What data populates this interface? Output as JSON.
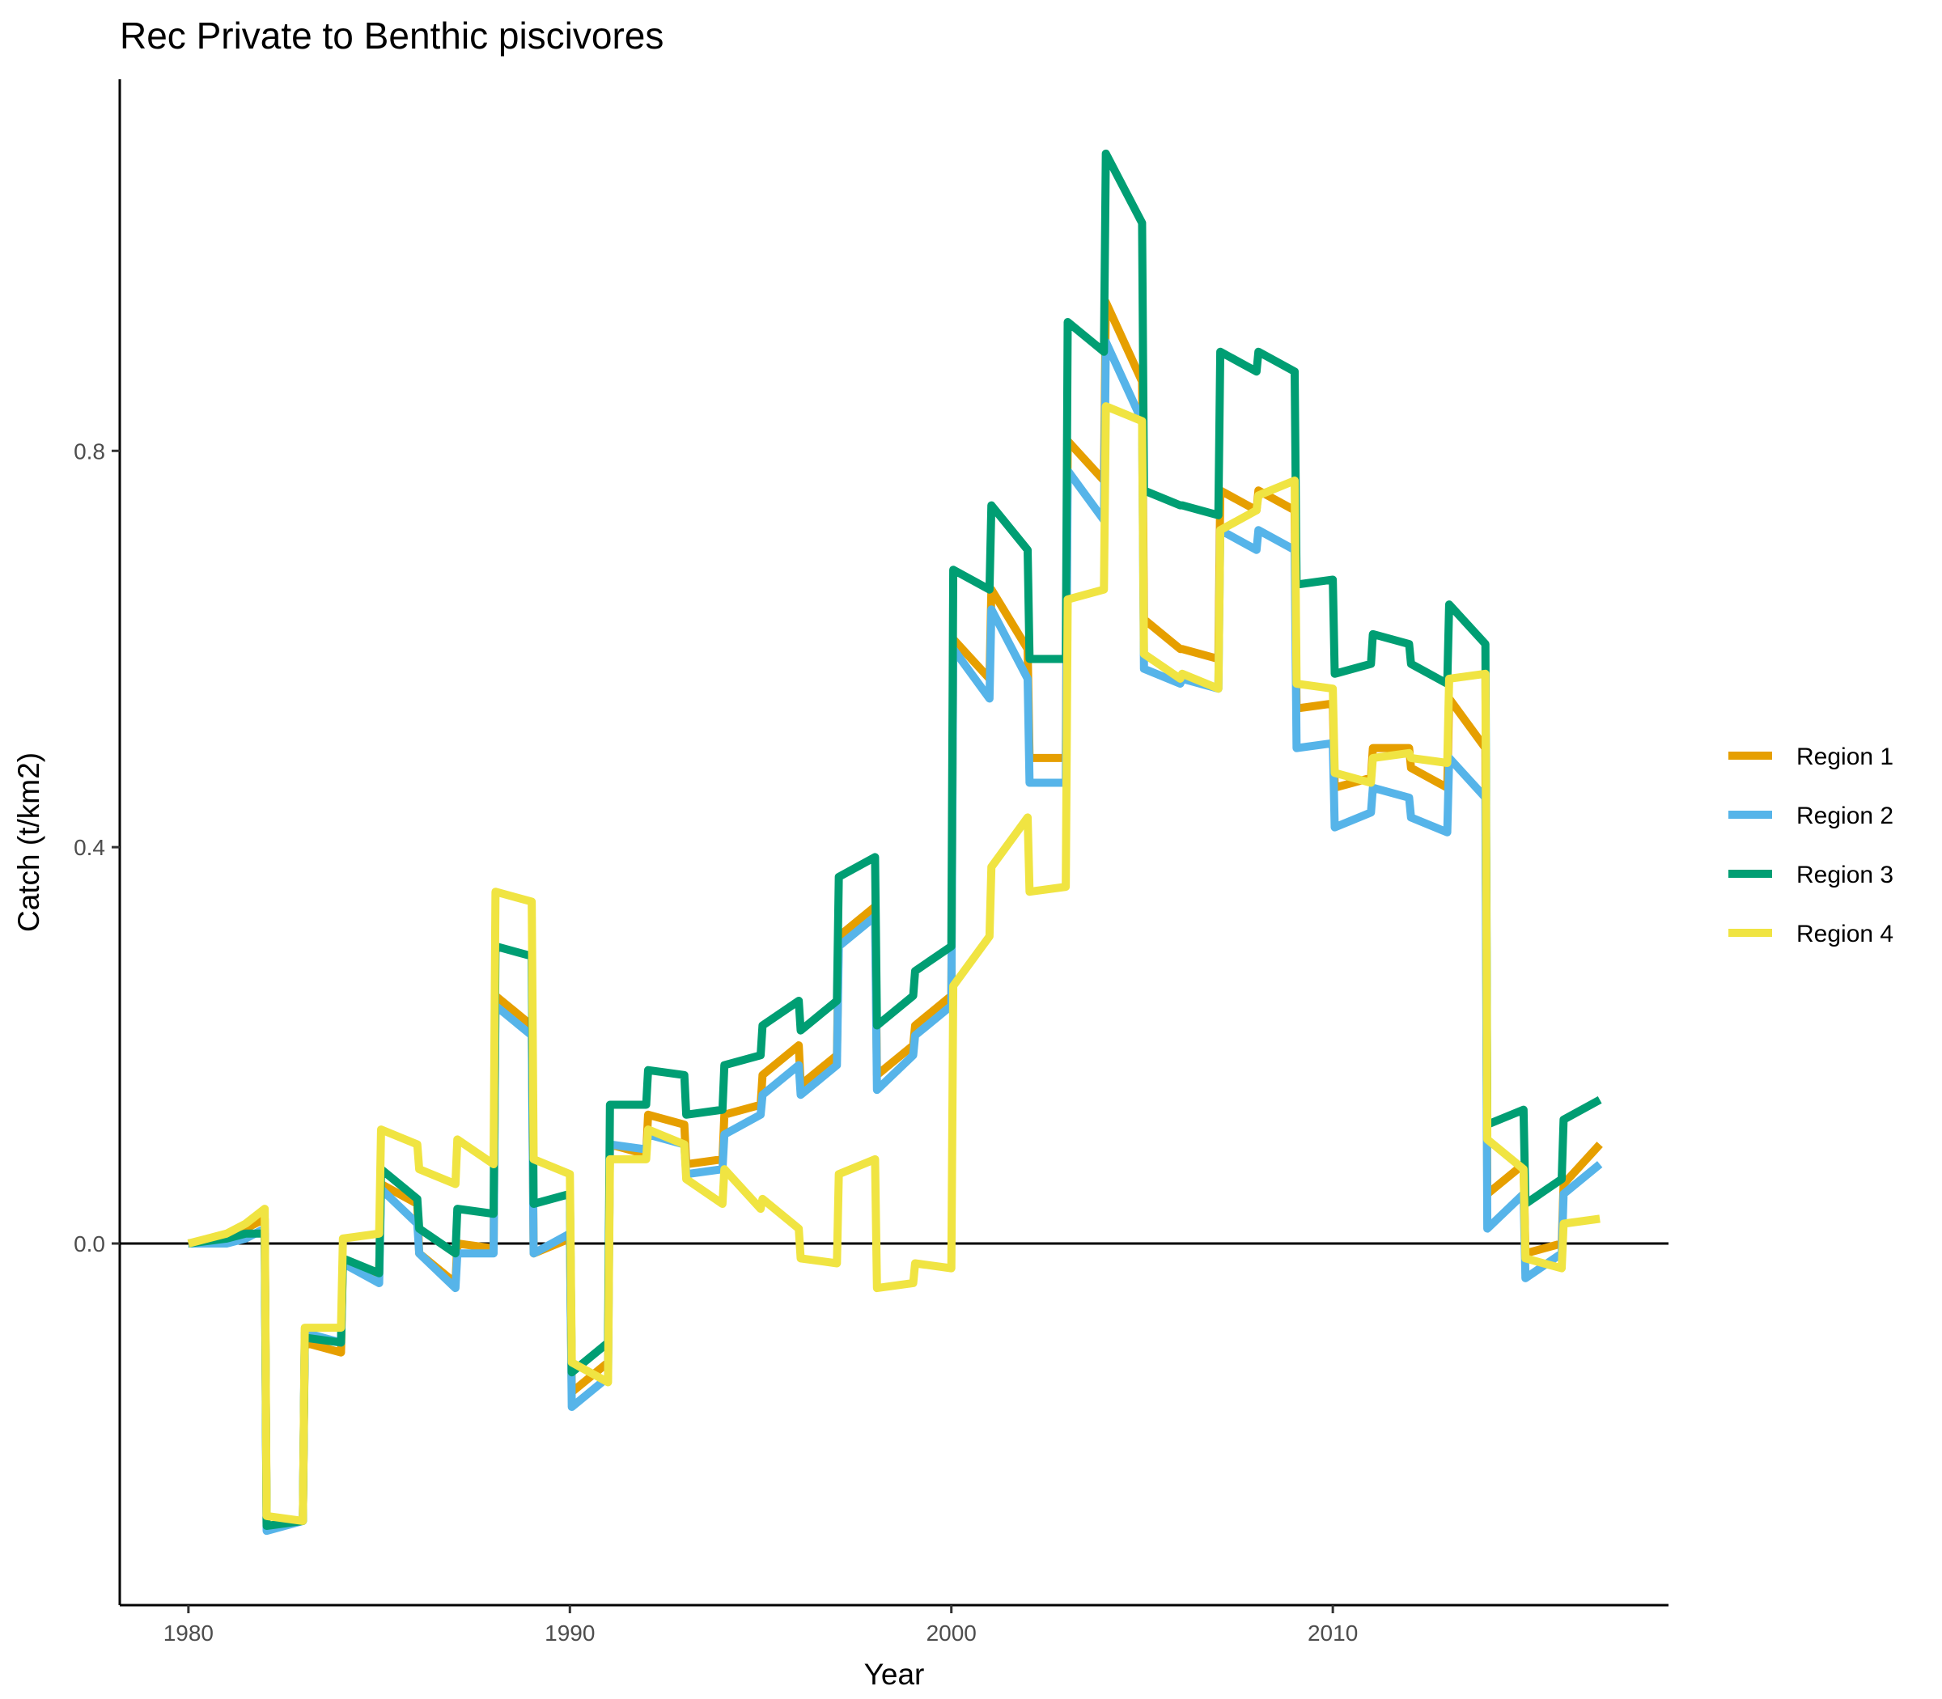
{
  "chart_data": {
    "type": "line",
    "title": "Rec Private to Benthic piscivores",
    "xlabel": "Year",
    "ylabel": "Catch (t/km2)",
    "xlim": [
      1978.2,
      2018.8
    ],
    "ylim": [
      -0.365,
      1.175
    ],
    "x_ticks": [
      1980,
      1990,
      2000,
      2010
    ],
    "x_tick_labels": [
      "1980",
      "1990",
      "2000",
      "2010"
    ],
    "y_ticks": [
      0.0,
      0.4,
      0.8
    ],
    "y_tick_labels": [
      "0.0",
      "0.4",
      "0.8"
    ],
    "reference_line": 0,
    "grid": false,
    "legend_position": "right",
    "x": [
      1980,
      1981,
      1981.5,
      1982,
      1982.05,
      1983,
      1983.05,
      1984,
      1984.05,
      1985,
      1985.05,
      1986,
      1986.05,
      1987,
      1987.05,
      1988,
      1988.05,
      1989,
      1989.05,
      1990,
      1990.05,
      1991,
      1991.05,
      1992,
      1992.05,
      1993,
      1993.05,
      1994,
      1994.05,
      1995,
      1995.05,
      1996,
      1996.05,
      1997,
      1997.05,
      1998,
      1998.05,
      1999,
      1999.05,
      2000,
      2000.05,
      2001,
      2001.05,
      2002,
      2002.05,
      2003,
      2003.05,
      2004,
      2004.05,
      2005,
      2005.05,
      2006,
      2006.05,
      2007,
      2007.05,
      2008,
      2008.05,
      2009,
      2009.05,
      2010,
      2010.05,
      2011,
      2011.05,
      2012,
      2012.05,
      2013,
      2013.05,
      2014,
      2014.05,
      2015,
      2015.05,
      2016,
      2016.05,
      2017
    ],
    "series": [
      {
        "name": "Region 1",
        "color": "#E69F00",
        "values": [
          0,
          0.005,
          0.015,
          0.025,
          -0.285,
          -0.28,
          -0.1,
          -0.11,
          -0.02,
          -0.03,
          0.06,
          0.04,
          -0.01,
          -0.04,
          0.0,
          -0.005,
          0.25,
          0.22,
          -0.01,
          0.005,
          -0.15,
          -0.12,
          0.1,
          0.09,
          0.13,
          0.12,
          0.08,
          0.085,
          0.13,
          0.14,
          0.17,
          0.2,
          0.16,
          0.19,
          0.31,
          0.34,
          0.17,
          0.2,
          0.22,
          0.25,
          0.61,
          0.57,
          0.66,
          0.6,
          0.49,
          0.49,
          0.81,
          0.77,
          0.95,
          0.87,
          0.63,
          0.6,
          0.6,
          0.59,
          0.76,
          0.74,
          0.76,
          0.74,
          0.54,
          0.545,
          0.46,
          0.47,
          0.5,
          0.5,
          0.48,
          0.46,
          0.55,
          0.5,
          0.05,
          0.08,
          -0.01,
          0.0,
          0.06,
          0.1
        ]
      },
      {
        "name": "Region 2",
        "color": "#56B4E9",
        "values": [
          0,
          0.0,
          0.005,
          0.015,
          -0.29,
          -0.28,
          -0.09,
          -0.1,
          -0.02,
          -0.04,
          0.055,
          0.02,
          -0.01,
          -0.045,
          -0.01,
          -0.01,
          0.24,
          0.21,
          -0.01,
          0.01,
          -0.165,
          -0.135,
          0.1,
          0.095,
          0.11,
          0.1,
          0.07,
          0.075,
          0.11,
          0.13,
          0.15,
          0.18,
          0.15,
          0.18,
          0.3,
          0.33,
          0.155,
          0.19,
          0.21,
          0.24,
          0.6,
          0.55,
          0.64,
          0.57,
          0.465,
          0.465,
          0.78,
          0.73,
          0.91,
          0.83,
          0.58,
          0.565,
          0.57,
          0.56,
          0.72,
          0.7,
          0.72,
          0.7,
          0.5,
          0.505,
          0.42,
          0.435,
          0.46,
          0.45,
          0.43,
          0.415,
          0.49,
          0.45,
          0.015,
          0.05,
          -0.035,
          -0.01,
          0.05,
          0.08
        ]
      },
      {
        "name": "Region 3",
        "color": "#009E73",
        "values": [
          0,
          0.005,
          0.01,
          0.01,
          -0.285,
          -0.28,
          -0.095,
          -0.1,
          -0.015,
          -0.03,
          0.075,
          0.045,
          0.015,
          -0.01,
          0.035,
          0.03,
          0.3,
          0.29,
          0.04,
          0.05,
          -0.13,
          -0.1,
          0.14,
          0.14,
          0.175,
          0.17,
          0.13,
          0.135,
          0.18,
          0.19,
          0.22,
          0.245,
          0.215,
          0.245,
          0.37,
          0.39,
          0.22,
          0.25,
          0.275,
          0.3,
          0.68,
          0.66,
          0.745,
          0.7,
          0.59,
          0.59,
          0.93,
          0.9,
          1.1,
          1.03,
          0.76,
          0.745,
          0.745,
          0.735,
          0.9,
          0.88,
          0.9,
          0.88,
          0.665,
          0.67,
          0.575,
          0.585,
          0.615,
          0.605,
          0.585,
          0.565,
          0.645,
          0.605,
          0.12,
          0.135,
          0.04,
          0.065,
          0.125,
          0.145
        ]
      },
      {
        "name": "Region 4",
        "color": "#F0E442",
        "values": [
          0,
          0.01,
          0.02,
          0.035,
          -0.275,
          -0.28,
          -0.085,
          -0.085,
          0.005,
          0.01,
          0.115,
          0.1,
          0.075,
          0.06,
          0.105,
          0.08,
          0.355,
          0.345,
          0.085,
          0.07,
          -0.12,
          -0.14,
          0.085,
          0.085,
          0.115,
          0.1,
          0.065,
          0.04,
          0.075,
          0.035,
          0.045,
          0.015,
          -0.015,
          -0.02,
          0.07,
          0.085,
          -0.045,
          -0.04,
          -0.02,
          -0.025,
          0.26,
          0.31,
          0.38,
          0.43,
          0.355,
          0.36,
          0.65,
          0.66,
          0.845,
          0.83,
          0.595,
          0.57,
          0.575,
          0.56,
          0.72,
          0.74,
          0.755,
          0.77,
          0.565,
          0.56,
          0.475,
          0.465,
          0.49,
          0.495,
          0.49,
          0.485,
          0.57,
          0.575,
          0.105,
          0.075,
          -0.015,
          -0.025,
          0.02,
          0.025
        ]
      }
    ]
  }
}
